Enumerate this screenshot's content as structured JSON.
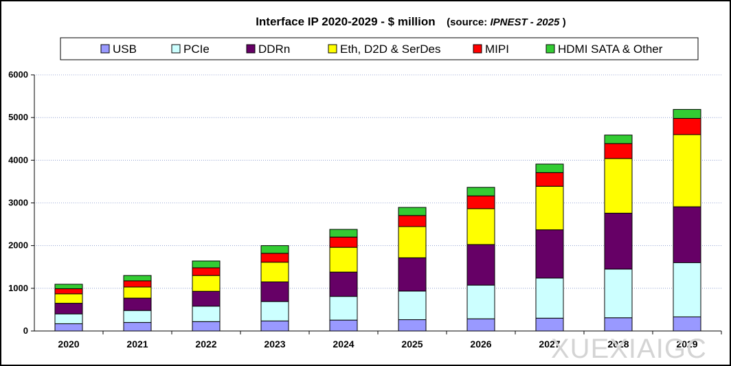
{
  "chart_data": {
    "type": "bar",
    "stacked": true,
    "title": {
      "main": "Interface IP  2020-2029 - $ million",
      "source_prefix": "(source: ",
      "source_name": "IPNEST - 2025",
      "source_suffix": ")"
    },
    "categories": [
      "2020",
      "2021",
      "2022",
      "2023",
      "2024",
      "2025",
      "2026",
      "2027",
      "2028",
      "2029"
    ],
    "series": [
      {
        "name": "USB",
        "color": "#9999ff",
        "values": [
          170,
          200,
          220,
          235,
          255,
          265,
          285,
          300,
          310,
          330
        ]
      },
      {
        "name": "PCIe",
        "color": "#ccffff",
        "values": [
          230,
          280,
          360,
          455,
          555,
          670,
          790,
          940,
          1140,
          1270
        ]
      },
      {
        "name": "DDRn",
        "color": "#660066",
        "values": [
          250,
          290,
          350,
          460,
          570,
          780,
          950,
          1130,
          1310,
          1310
        ]
      },
      {
        "name": "Eth, D2D & SerDes",
        "color": "#ffff00",
        "values": [
          220,
          260,
          370,
          460,
          580,
          730,
          840,
          1020,
          1280,
          1690
        ]
      },
      {
        "name": "MIPI",
        "color": "#ff0000",
        "values": [
          120,
          145,
          180,
          210,
          240,
          260,
          300,
          320,
          350,
          380
        ]
      },
      {
        "name": "HDMI SATA & Other",
        "color": "#33cc33",
        "values": [
          105,
          125,
          160,
          180,
          180,
          190,
          200,
          200,
          200,
          210
        ]
      }
    ],
    "y_axis": {
      "min": 0,
      "max": 6000,
      "step": 1000
    },
    "gridlines": true,
    "legend_position": "top"
  },
  "watermark": "XUEXIAIGC"
}
